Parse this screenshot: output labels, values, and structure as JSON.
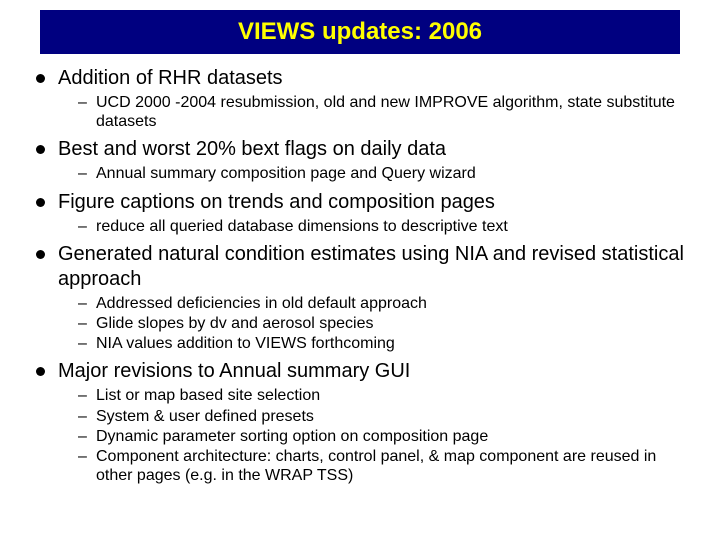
{
  "title": "VIEWS updates: 2006",
  "colors": {
    "title_bg": "#000080",
    "title_text": "#ffff00",
    "body_bg": "#ffffff",
    "bullet": "#000000",
    "text": "#000000"
  },
  "fontsizes": {
    "title": 24,
    "main": 20,
    "sub": 16
  },
  "items": [
    {
      "text": "Addition of RHR datasets",
      "sub": [
        "UCD 2000 -2004 resubmission, old and new IMPROVE algorithm, state substitute datasets"
      ]
    },
    {
      "text": "Best and worst 20% bext flags on daily data",
      "sub": [
        "Annual summary composition page and Query wizard"
      ]
    },
    {
      "text": "Figure captions on trends and composition pages",
      "sub": [
        "reduce all queried database dimensions to descriptive text"
      ]
    },
    {
      "text": "Generated natural condition estimates using NIA and revised statistical approach",
      "sub": [
        "Addressed deficiencies in old default approach",
        "Glide slopes by dv and aerosol species",
        "NIA values addition to VIEWS forthcoming"
      ]
    },
    {
      "text": "Major revisions to Annual summary GUI",
      "sub": [
        "List or map based site selection",
        "System & user defined presets",
        "Dynamic parameter sorting option on composition page",
        "Component architecture: charts, control panel, & map component are reused in other pages (e.g. in the WRAP TSS)"
      ]
    }
  ]
}
